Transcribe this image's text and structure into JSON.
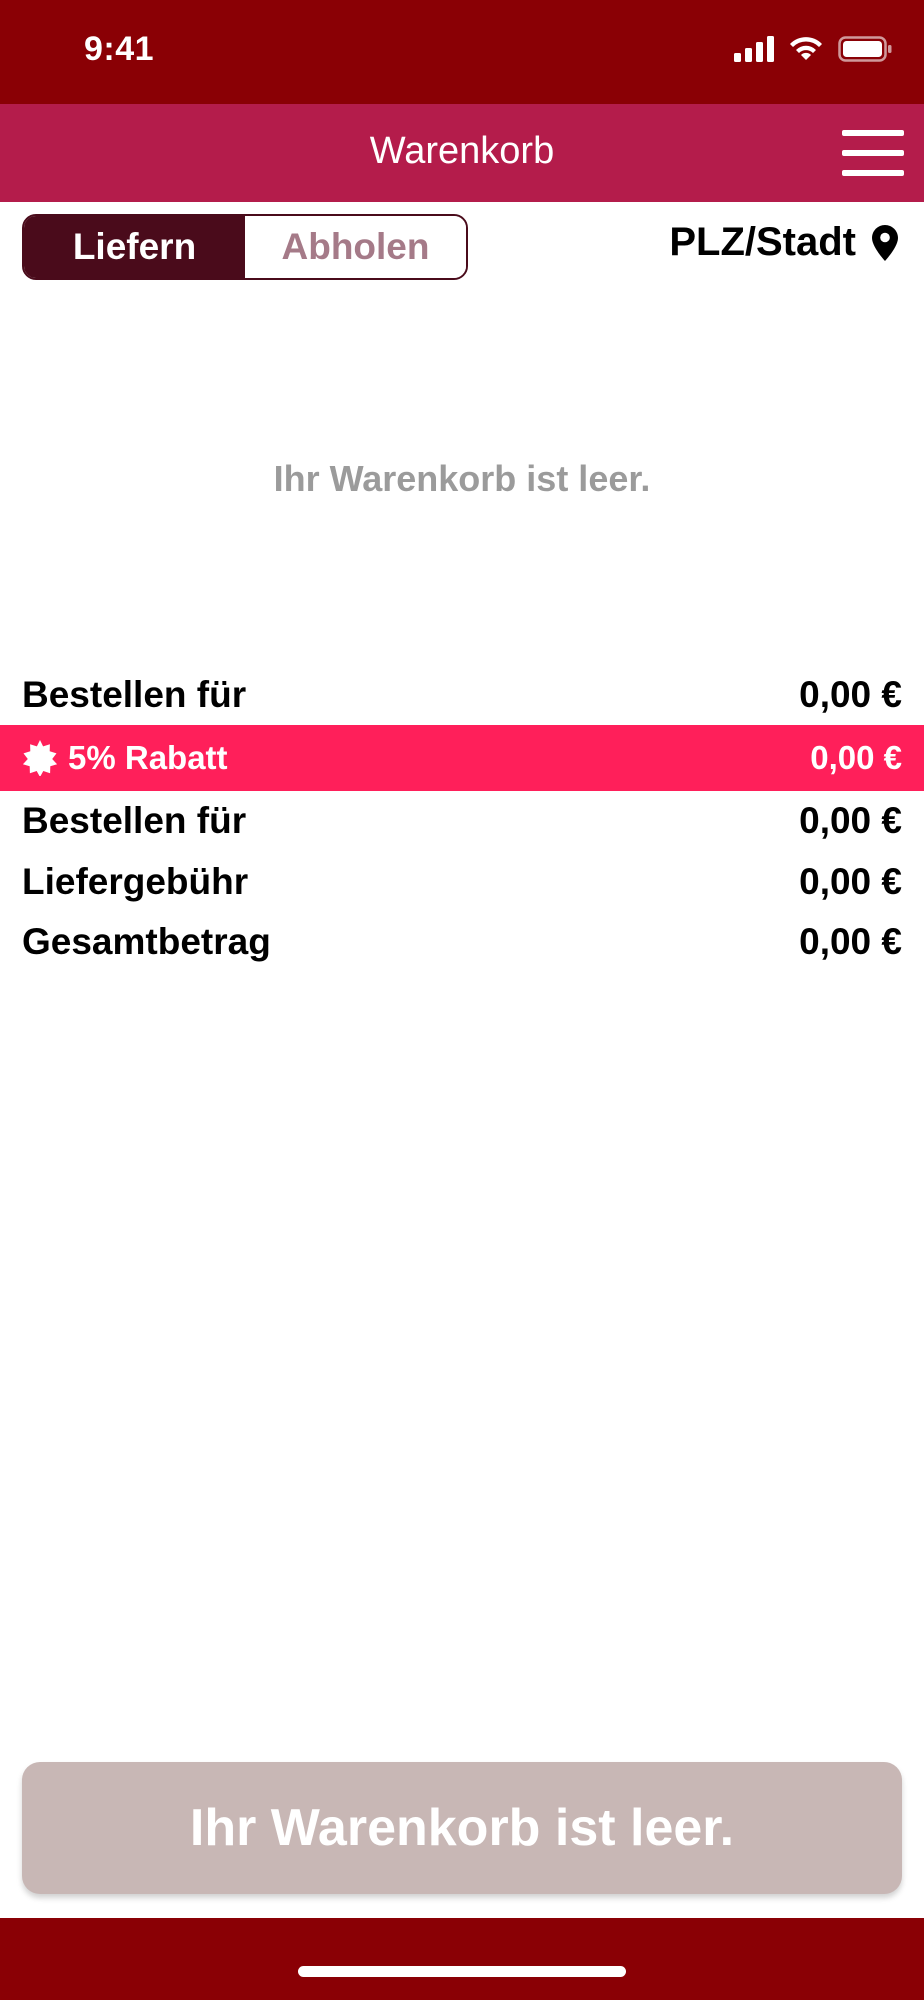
{
  "status_bar": {
    "time": "9:41",
    "icons": [
      "signal-icon",
      "wifi-icon",
      "battery-icon"
    ]
  },
  "header": {
    "title": "Warenkorb",
    "menu_icon": "hamburger-menu-icon"
  },
  "mode_toggle": {
    "options": [
      "Liefern",
      "Abholen"
    ],
    "selected": "Liefern"
  },
  "location": {
    "label": "PLZ/Stadt",
    "icon": "location-pin-icon"
  },
  "cart": {
    "empty_message": "Ihr Warenkorb ist leer."
  },
  "summary": {
    "rows": [
      {
        "label": "Bestellen für",
        "value": "0,00 €"
      },
      {
        "label": "5% Rabatt",
        "value": "0,00 €",
        "icon": "discount-badge-icon"
      },
      {
        "label": "Bestellen für",
        "value": "0,00 €"
      },
      {
        "label": "Liefergebühr",
        "value": "0,00 €"
      },
      {
        "label": "Gesamtbetrag",
        "value": "0,00 €"
      }
    ]
  },
  "checkout": {
    "label": "Ihr Warenkorb ist leer."
  },
  "colors": {
    "status_bar": "#8a0005",
    "header": "#b41c4b",
    "toggle_active": "#4a0b1b",
    "discount": "#ff1f5a",
    "checkout_disabled": "#c8b7b5"
  }
}
